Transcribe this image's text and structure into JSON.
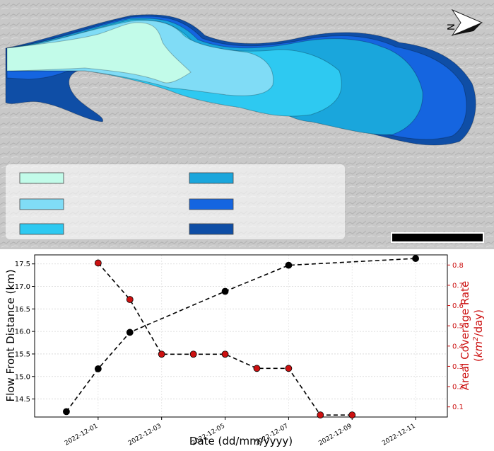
{
  "map": {
    "background_color": "#c8c8c8",
    "north_label": "N",
    "legend_swatch_colors": [
      "#c2fbe9",
      "#80dcf6",
      "#2ec9f1",
      "#1aa6dc",
      "#1565e0",
      "#0f4ea6"
    ],
    "flow_colors": [
      "#0f4ea6",
      "#1565e0",
      "#1aa6dc",
      "#2ec9f1",
      "#80dcf6",
      "#c2fbe9"
    ]
  },
  "chart_data": {
    "type": "line",
    "xlabel": "Date (dd/mm/yyyy)",
    "ylabel_left": "Flow Front Distance (km)",
    "ylabel_right_prefix": "Areal Coverage Rate",
    "ylabel_right_unit_base": "km",
    "ylabel_right_unit_exp": "2",
    "ylabel_right_unit_suffix": "/day)",
    "ylabel_right_open": "(",
    "x_ticks": [
      "2022-12-01",
      "2022-12-03",
      "2022-12-05",
      "2022-12-07",
      "2022-12-09",
      "2022-12-11"
    ],
    "xlim": [
      "2022-11-29",
      "2022-12-12"
    ],
    "ylim_left": [
      14.1,
      17.7
    ],
    "yticks_left": [
      "14.5",
      "15.0",
      "15.5",
      "16.0",
      "16.5",
      "17.0",
      "17.5"
    ],
    "ylim_right": [
      0.05,
      0.85
    ],
    "yticks_right": [
      "0.1",
      "0.2",
      "0.3",
      "0.4",
      "0.5",
      "0.6",
      "0.7",
      "0.8"
    ],
    "grid": true,
    "series": [
      {
        "axis": "left",
        "color": "#000000",
        "x": [
          "2022-11-30",
          "2022-12-01",
          "2022-12-02",
          "2022-12-05",
          "2022-12-07",
          "2022-12-11"
        ],
        "values": [
          14.22,
          15.17,
          15.98,
          16.89,
          17.47,
          17.62
        ]
      },
      {
        "axis": "right",
        "color": "#cc1111",
        "x": [
          "2022-12-01",
          "2022-12-02",
          "2022-12-03",
          "2022-12-04",
          "2022-12-05",
          "2022-12-06",
          "2022-12-07",
          "2022-12-08",
          "2022-12-09"
        ],
        "values": [
          0.81,
          0.63,
          0.36,
          0.36,
          0.36,
          0.29,
          0.29,
          0.06,
          0.06
        ]
      }
    ]
  }
}
